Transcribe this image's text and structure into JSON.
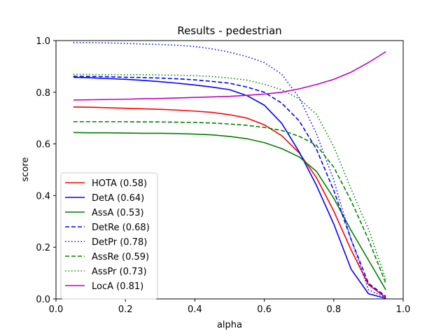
{
  "chart_data": {
    "type": "line",
    "title": "Results - pedestrian",
    "xlabel": "alpha",
    "ylabel": "score",
    "xlim": [
      0.0,
      1.0
    ],
    "ylim": [
      0.0,
      1.0
    ],
    "xticks": [
      "0.0",
      "0.2",
      "0.4",
      "0.6",
      "0.8",
      "1.0"
    ],
    "yticks": [
      "0.0",
      "0.2",
      "0.4",
      "0.6",
      "0.8",
      "1.0"
    ],
    "grid": false,
    "legend_position": "lower-left",
    "x": [
      0.05,
      0.1,
      0.15,
      0.2,
      0.25,
      0.3,
      0.35,
      0.4,
      0.45,
      0.5,
      0.55,
      0.6,
      0.65,
      0.7,
      0.75,
      0.8,
      0.85,
      0.9,
      0.95
    ],
    "series": [
      {
        "name": "HOTA (0.58)",
        "color": "#ff0000",
        "dash": "solid",
        "values": [
          0.743,
          0.742,
          0.74,
          0.738,
          0.736,
          0.734,
          0.731,
          0.727,
          0.722,
          0.713,
          0.7,
          0.674,
          0.632,
          0.566,
          0.47,
          0.34,
          0.19,
          0.055,
          0.005
        ]
      },
      {
        "name": "DetA (0.64)",
        "color": "#0000ff",
        "dash": "solid",
        "values": [
          0.858,
          0.856,
          0.853,
          0.85,
          0.846,
          0.841,
          0.835,
          0.828,
          0.82,
          0.81,
          0.787,
          0.75,
          0.68,
          0.57,
          0.44,
          0.29,
          0.115,
          0.02,
          0.002
        ]
      },
      {
        "name": "AssA (0.53)",
        "color": "#008000",
        "dash": "solid",
        "values": [
          0.644,
          0.643,
          0.643,
          0.642,
          0.641,
          0.641,
          0.64,
          0.638,
          0.635,
          0.629,
          0.62,
          0.605,
          0.582,
          0.55,
          0.494,
          0.39,
          0.265,
          0.15,
          0.035
        ]
      },
      {
        "name": "DetRe (0.68)",
        "color": "#0000ff",
        "dash": "dashed",
        "values": [
          0.862,
          0.861,
          0.86,
          0.858,
          0.857,
          0.855,
          0.852,
          0.848,
          0.842,
          0.835,
          0.82,
          0.8,
          0.758,
          0.69,
          0.58,
          0.42,
          0.23,
          0.06,
          0.01
        ]
      },
      {
        "name": "DetPr (0.78)",
        "color": "#0000ff",
        "dash": "dotted",
        "values": [
          0.992,
          0.992,
          0.991,
          0.989,
          0.987,
          0.985,
          0.982,
          0.977,
          0.968,
          0.955,
          0.938,
          0.915,
          0.87,
          0.78,
          0.64,
          0.46,
          0.23,
          0.035,
          0.005
        ]
      },
      {
        "name": "AssRe (0.59)",
        "color": "#008000",
        "dash": "dashed",
        "values": [
          0.686,
          0.686,
          0.686,
          0.686,
          0.685,
          0.685,
          0.684,
          0.683,
          0.681,
          0.677,
          0.672,
          0.664,
          0.652,
          0.63,
          0.595,
          0.51,
          0.38,
          0.23,
          0.06
        ]
      },
      {
        "name": "AssPr (0.73)",
        "color": "#008000",
        "dash": "dotted",
        "values": [
          0.87,
          0.869,
          0.868,
          0.868,
          0.868,
          0.867,
          0.866,
          0.864,
          0.861,
          0.855,
          0.847,
          0.831,
          0.81,
          0.775,
          0.715,
          0.59,
          0.425,
          0.27,
          0.075
        ]
      },
      {
        "name": "LocA (0.81)",
        "color": "#bf00bf",
        "dash": "solid",
        "values": [
          0.77,
          0.771,
          0.772,
          0.773,
          0.775,
          0.776,
          0.778,
          0.78,
          0.782,
          0.784,
          0.788,
          0.793,
          0.8,
          0.813,
          0.83,
          0.85,
          0.878,
          0.915,
          0.957
        ]
      }
    ]
  }
}
